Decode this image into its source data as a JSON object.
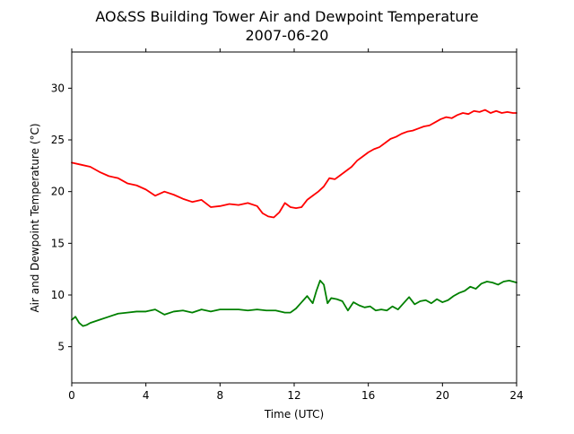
{
  "chart_data": {
    "type": "line",
    "title": "AO&SS Building Tower Air and Dewpoint Temperature",
    "subtitle": "2007-06-20",
    "xlabel": "Time (UTC)",
    "ylabel": "Air and Dewpoint Temperature (°C)",
    "xlim": [
      0,
      24
    ],
    "ylim": [
      1.5,
      33.5
    ],
    "xticks": [
      0,
      4,
      8,
      12,
      16,
      20,
      24
    ],
    "yticks": [
      5,
      10,
      15,
      20,
      25,
      30
    ],
    "grid": false,
    "colors": {
      "air": "#ff0000",
      "dewpoint": "#008000"
    },
    "series": [
      {
        "key": "air",
        "x": [
          0,
          0.5,
          1,
          1.5,
          2,
          2.5,
          3,
          3.5,
          4,
          4.5,
          5,
          5.5,
          6,
          6.5,
          7,
          7.5,
          8,
          8.5,
          9,
          9.5,
          10,
          10.3,
          10.6,
          10.9,
          11.2,
          11.5,
          11.8,
          12.1,
          12.4,
          12.7,
          13,
          13.3,
          13.6,
          13.9,
          14.2,
          14.5,
          14.8,
          15.1,
          15.4,
          15.7,
          16,
          16.3,
          16.6,
          16.9,
          17.2,
          17.5,
          17.8,
          18.1,
          18.4,
          18.7,
          19,
          19.3,
          19.6,
          19.9,
          20.2,
          20.5,
          20.8,
          21.1,
          21.4,
          21.7,
          22,
          22.3,
          22.6,
          22.9,
          23.2,
          23.5,
          23.8,
          24
        ],
        "values": [
          22.8,
          22.6,
          22.4,
          21.9,
          21.5,
          21.3,
          20.8,
          20.6,
          20.2,
          19.6,
          20.0,
          19.7,
          19.3,
          19.0,
          19.2,
          18.5,
          18.6,
          18.8,
          18.7,
          18.9,
          18.6,
          17.9,
          17.6,
          17.5,
          18.0,
          18.9,
          18.5,
          18.4,
          18.5,
          19.2,
          19.6,
          20.0,
          20.5,
          21.3,
          21.2,
          21.6,
          22.0,
          22.4,
          23.0,
          23.4,
          23.8,
          24.1,
          24.3,
          24.7,
          25.1,
          25.3,
          25.6,
          25.8,
          25.9,
          26.1,
          26.3,
          26.4,
          26.7,
          27.0,
          27.2,
          27.1,
          27.4,
          27.6,
          27.5,
          27.8,
          27.7,
          27.9,
          27.6,
          27.8,
          27.6,
          27.7,
          27.6,
          27.6
        ]
      },
      {
        "key": "dewpoint",
        "x": [
          0,
          0.2,
          0.4,
          0.6,
          0.8,
          1,
          1.5,
          2,
          2.5,
          3,
          3.5,
          4,
          4.5,
          5,
          5.5,
          6,
          6.5,
          7,
          7.5,
          8,
          8.5,
          9,
          9.5,
          10,
          10.5,
          11,
          11.5,
          11.8,
          12.1,
          12.4,
          12.7,
          13,
          13.2,
          13.4,
          13.6,
          13.8,
          14,
          14.3,
          14.6,
          14.9,
          15.2,
          15.5,
          15.8,
          16.1,
          16.4,
          16.7,
          17,
          17.3,
          17.6,
          17.9,
          18.2,
          18.5,
          18.8,
          19.1,
          19.4,
          19.7,
          20,
          20.3,
          20.6,
          20.9,
          21.2,
          21.5,
          21.8,
          22.1,
          22.4,
          22.7,
          23,
          23.3,
          23.6,
          24
        ],
        "values": [
          7.6,
          7.9,
          7.3,
          7.0,
          7.1,
          7.3,
          7.6,
          7.9,
          8.2,
          8.3,
          8.4,
          8.4,
          8.6,
          8.1,
          8.4,
          8.5,
          8.3,
          8.6,
          8.4,
          8.6,
          8.6,
          8.6,
          8.5,
          8.6,
          8.5,
          8.5,
          8.3,
          8.3,
          8.7,
          9.3,
          9.9,
          9.2,
          10.4,
          11.4,
          11.0,
          9.2,
          9.7,
          9.6,
          9.4,
          8.5,
          9.3,
          9.0,
          8.8,
          8.9,
          8.5,
          8.6,
          8.5,
          8.9,
          8.6,
          9.2,
          9.8,
          9.1,
          9.4,
          9.5,
          9.2,
          9.6,
          9.3,
          9.5,
          9.9,
          10.2,
          10.4,
          10.8,
          10.6,
          11.1,
          11.3,
          11.2,
          11.0,
          11.3,
          11.4,
          11.2
        ]
      }
    ]
  }
}
